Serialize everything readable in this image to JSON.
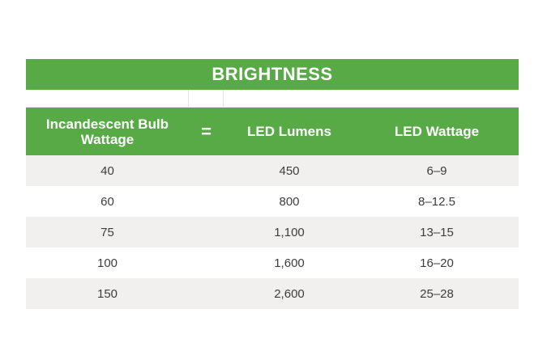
{
  "table": {
    "title": "BRIGHTNESS",
    "headers": {
      "incandescent": "Incandescent Bulb\nWattage",
      "equals": "=",
      "lumens": "LED Lumens",
      "wattage": "LED Wattage"
    },
    "rows": [
      {
        "incandescent": "40",
        "lumens": "450",
        "wattage": "6–9"
      },
      {
        "incandescent": "60",
        "lumens": "800",
        "wattage": "8–12.5"
      },
      {
        "incandescent": "75",
        "lumens": "1,100",
        "wattage": "13–15"
      },
      {
        "incandescent": "100",
        "lumens": "1,600",
        "wattage": "16–20"
      },
      {
        "incandescent": "150",
        "lumens": "2,600",
        "wattage": "25–28"
      }
    ],
    "colors": {
      "header_green": "#58aa46",
      "row_shade": "#f1f0ee",
      "text": "#3d3d3d"
    }
  }
}
